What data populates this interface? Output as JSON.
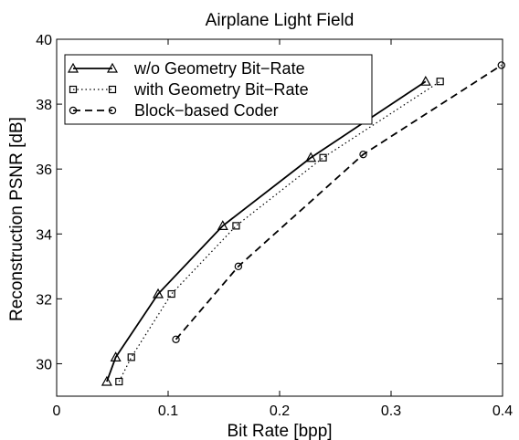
{
  "chart_data": {
    "type": "line",
    "title": "Airplane Light Field",
    "xlabel": "Bit Rate [bpp]",
    "ylabel": "Reconstruction PSNR [dB]",
    "xlim": [
      0,
      0.4
    ],
    "ylim": [
      29,
      40
    ],
    "xticks": [
      0,
      0.1,
      0.2,
      0.3,
      0.4
    ],
    "xtick_labels": [
      "0",
      "0.1",
      "0.2",
      "0.3",
      "0.4"
    ],
    "yticks": [
      30,
      32,
      34,
      36,
      38,
      40
    ],
    "ytick_labels": [
      "30",
      "32",
      "34",
      "36",
      "38",
      "40"
    ],
    "grid": false,
    "legend_position": "top-left",
    "series": [
      {
        "name": "w/o Geometry Bit−Rate",
        "line": "solid",
        "marker": "triangle",
        "x": [
          0.045,
          0.053,
          0.091,
          0.149,
          0.228,
          0.331
        ],
        "y": [
          29.45,
          30.2,
          32.15,
          34.25,
          36.35,
          38.7
        ]
      },
      {
        "name": "with Geometry Bit−Rate",
        "line": "dotted",
        "marker": "square",
        "x": [
          0.056,
          0.067,
          0.103,
          0.161,
          0.239,
          0.344
        ],
        "y": [
          29.45,
          30.2,
          32.15,
          34.25,
          36.35,
          38.7
        ]
      },
      {
        "name": "Block−based Coder",
        "line": "dashed",
        "marker": "circle",
        "x": [
          0.107,
          0.163,
          0.275,
          0.399
        ],
        "y": [
          30.75,
          33.0,
          36.45,
          39.2
        ]
      }
    ]
  }
}
